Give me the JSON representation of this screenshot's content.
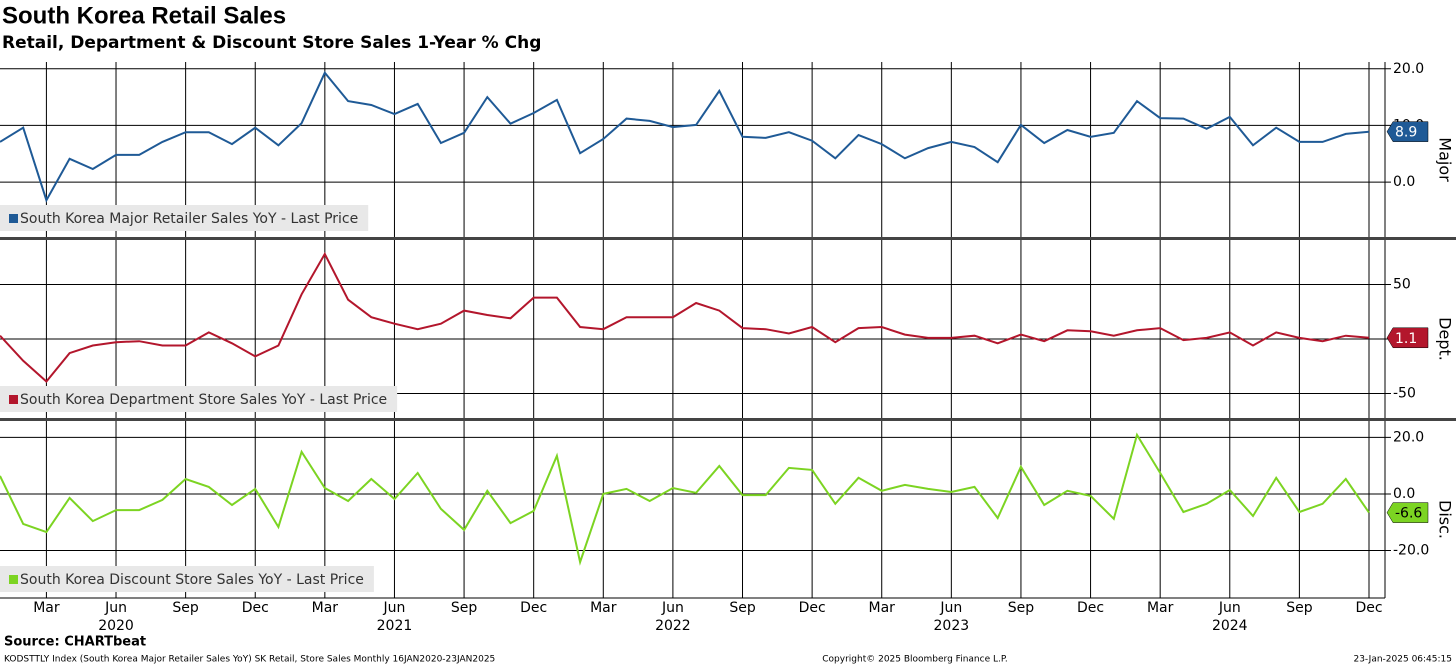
{
  "title": "South Korea Retail Sales",
  "subtitle": "Retail, Department & Discount Store Sales 1-Year % Chg",
  "source": "Source: CHARTbeat",
  "footer": {
    "left": "KODSTTLY Index (South Korea Major Retailer Sales YoY) SK Retail, Store Sales  Monthly 16JAN2020-23JAN2025",
    "center": "Copyright© 2025 Bloomberg Finance L.P.",
    "right": "23-Jan-2025 06:45:15"
  },
  "chart_data": [
    {
      "type": "line",
      "axis_label": "Major",
      "x": [
        "2020-01",
        "2020-02",
        "2020-03",
        "2020-04",
        "2020-05",
        "2020-06",
        "2020-07",
        "2020-08",
        "2020-09",
        "2020-10",
        "2020-11",
        "2020-12",
        "2021-01",
        "2021-02",
        "2021-03",
        "2021-04",
        "2021-05",
        "2021-06",
        "2021-07",
        "2021-08",
        "2021-09",
        "2021-10",
        "2021-11",
        "2021-12",
        "2022-01",
        "2022-02",
        "2022-03",
        "2022-04",
        "2022-05",
        "2022-06",
        "2022-07",
        "2022-08",
        "2022-09",
        "2022-10",
        "2022-11",
        "2022-12",
        "2023-01",
        "2023-02",
        "2023-03",
        "2023-04",
        "2023-05",
        "2023-06",
        "2023-07",
        "2023-08",
        "2023-09",
        "2023-10",
        "2023-11",
        "2023-12",
        "2024-01",
        "2024-02",
        "2024-03",
        "2024-04",
        "2024-05",
        "2024-06",
        "2024-07",
        "2024-08",
        "2024-09",
        "2024-10",
        "2024-11",
        "2024-12"
      ],
      "series": [
        {
          "name": "South Korea Major Retailer Sales YoY - Last Price",
          "color": "#1f5a96",
          "values": [
            7.1,
            9.6,
            -3.2,
            4.1,
            2.3,
            4.8,
            4.8,
            7.1,
            8.8,
            8.8,
            6.7,
            9.6,
            6.5,
            10.4,
            19.3,
            14.3,
            13.6,
            12.0,
            13.8,
            6.9,
            8.7,
            15.0,
            10.3,
            12.2,
            14.5,
            5.1,
            7.6,
            11.2,
            10.8,
            9.7,
            10.1,
            16.1,
            8.0,
            7.8,
            8.8,
            7.3,
            4.2,
            8.3,
            6.7,
            4.2,
            6.0,
            7.1,
            6.2,
            3.5,
            10.1,
            6.9,
            9.2,
            8.0,
            8.7,
            14.3,
            11.3,
            11.2,
            9.4,
            11.5,
            6.5,
            9.6,
            7.1,
            7.1,
            8.5,
            8.9
          ]
        }
      ],
      "ylim": [
        -9.7,
        21.2
      ],
      "yticks": [
        {
          "value": 0,
          "label": "0.0"
        },
        {
          "value": 10,
          "label": "10.0"
        },
        {
          "value": 20,
          "label": "20.0"
        }
      ]
    },
    {
      "type": "line",
      "axis_label": "Dept.",
      "x": [
        "2020-01",
        "2020-02",
        "2020-03",
        "2020-04",
        "2020-05",
        "2020-06",
        "2020-07",
        "2020-08",
        "2020-09",
        "2020-10",
        "2020-11",
        "2020-12",
        "2021-01",
        "2021-02",
        "2021-03",
        "2021-04",
        "2021-05",
        "2021-06",
        "2021-07",
        "2021-08",
        "2021-09",
        "2021-10",
        "2021-11",
        "2021-12",
        "2022-01",
        "2022-02",
        "2022-03",
        "2022-04",
        "2022-05",
        "2022-06",
        "2022-07",
        "2022-08",
        "2022-09",
        "2022-10",
        "2022-11",
        "2022-12",
        "2023-01",
        "2023-02",
        "2023-03",
        "2023-04",
        "2023-05",
        "2023-06",
        "2023-07",
        "2023-08",
        "2023-09",
        "2023-10",
        "2023-11",
        "2023-12",
        "2024-01",
        "2024-02",
        "2024-03",
        "2024-04",
        "2024-05",
        "2024-06",
        "2024-07",
        "2024-08",
        "2024-09",
        "2024-10",
        "2024-11",
        "2024-12"
      ],
      "series": [
        {
          "name": "South Korea Department Store Sales YoY - Last Price",
          "color": "#b3162c",
          "values": [
            3,
            -20,
            -39,
            -13,
            -6,
            -3,
            -2,
            -6,
            -6,
            6,
            -4,
            -16,
            -6,
            41,
            78,
            36,
            20,
            14,
            9,
            14,
            26,
            22,
            19,
            38,
            38,
            11,
            9,
            20,
            20,
            20,
            33,
            26,
            10,
            9,
            5,
            11,
            -3,
            10,
            11,
            4,
            1,
            1,
            3,
            -4,
            4,
            -2,
            8,
            7,
            3,
            8,
            10,
            -1,
            1,
            6,
            -6,
            6,
            1,
            -2,
            3,
            1.1
          ]
        }
      ],
      "ylim": [
        -72.5,
        90.8
      ],
      "yticks": [
        -50,
        0,
        50
      ]
    },
    {
      "type": "line",
      "axis_label": "Disc.",
      "x": [
        "2020-01",
        "2020-02",
        "2020-03",
        "2020-04",
        "2020-05",
        "2020-06",
        "2020-07",
        "2020-08",
        "2020-09",
        "2020-10",
        "2020-11",
        "2020-12",
        "2021-01",
        "2021-02",
        "2021-03",
        "2021-04",
        "2021-05",
        "2021-06",
        "2021-07",
        "2021-08",
        "2021-09",
        "2021-10",
        "2021-11",
        "2021-12",
        "2022-01",
        "2022-02",
        "2022-03",
        "2022-04",
        "2022-05",
        "2022-06",
        "2022-07",
        "2022-08",
        "2022-09",
        "2022-10",
        "2022-11",
        "2022-12",
        "2023-01",
        "2023-02",
        "2023-03",
        "2023-04",
        "2023-05",
        "2023-06",
        "2023-07",
        "2023-08",
        "2023-09",
        "2023-10",
        "2023-11",
        "2023-12",
        "2024-01",
        "2024-02",
        "2024-03",
        "2024-04",
        "2024-05",
        "2024-06",
        "2024-07",
        "2024-08",
        "2024-09",
        "2024-10",
        "2024-11",
        "2024-12"
      ],
      "series": [
        {
          "name": "South Korea Discount Store Sales YoY - Last Price",
          "color": "#7cd422",
          "values": [
            6.4,
            -10.6,
            -13.5,
            -1.4,
            -9.6,
            -5.7,
            -5.7,
            -2.1,
            5.3,
            2.5,
            -3.9,
            1.8,
            -11.7,
            14.9,
            2.1,
            -2.5,
            5.3,
            -1.8,
            7.4,
            -5.3,
            -12.7,
            1.1,
            -10.3,
            -6.0,
            13.5,
            -24.1,
            0,
            1.8,
            -2.5,
            2.1,
            0.4,
            9.9,
            -0.4,
            -0.4,
            9.2,
            8.5,
            -3.5,
            5.7,
            1.1,
            3.2,
            1.8,
            0.7,
            2.5,
            -8.5,
            9.6,
            -3.9,
            1.1,
            -0.7,
            -8.8,
            20.9,
            7.4,
            -6.4,
            -3.5,
            1.4,
            -7.8,
            5.7,
            -6.4,
            -3.5,
            5.3,
            -6.6
          ]
        }
      ],
      "ylim": [
        -36.8,
        25.8
      ],
      "yticks": [
        {
          "value": -20,
          "label": "-20.0"
        },
        {
          "value": 0,
          "label": "0.0"
        },
        {
          "value": 20,
          "label": "20.0"
        }
      ],
      "xticks": [
        {
          "value": "2020-03",
          "label": "Mar"
        },
        {
          "value": "2020-06",
          "label": "Jun"
        },
        {
          "value": "2020-09",
          "label": "Sep"
        },
        {
          "value": "2020-12",
          "label": "Dec"
        },
        {
          "value": "2021-03",
          "label": "Mar"
        },
        {
          "value": "2021-06",
          "label": "Jun"
        },
        {
          "value": "2021-09",
          "label": "Sep"
        },
        {
          "value": "2021-12",
          "label": "Dec"
        },
        {
          "value": "2022-03",
          "label": "Mar"
        },
        {
          "value": "2022-06",
          "label": "Jun"
        },
        {
          "value": "2022-09",
          "label": "Sep"
        },
        {
          "value": "2022-12",
          "label": "Dec"
        },
        {
          "value": "2023-03",
          "label": "Mar"
        },
        {
          "value": "2023-06",
          "label": "Jun"
        },
        {
          "value": "2023-09",
          "label": "Sep"
        },
        {
          "value": "2023-12",
          "label": "Dec"
        },
        {
          "value": "2024-03",
          "label": "Mar"
        },
        {
          "value": "2024-06",
          "label": "Jun"
        },
        {
          "value": "2024-09",
          "label": "Sep"
        },
        {
          "value": "2024-12",
          "label": "Dec"
        }
      ],
      "year_labels": [
        {
          "value": "2020-06",
          "label": "2020"
        },
        {
          "value": "2021-06",
          "label": "2021"
        },
        {
          "value": "2022-06",
          "label": "2022"
        },
        {
          "value": "2023-06",
          "label": "2023"
        },
        {
          "value": "2024-06",
          "label": "2024"
        }
      ]
    }
  ]
}
